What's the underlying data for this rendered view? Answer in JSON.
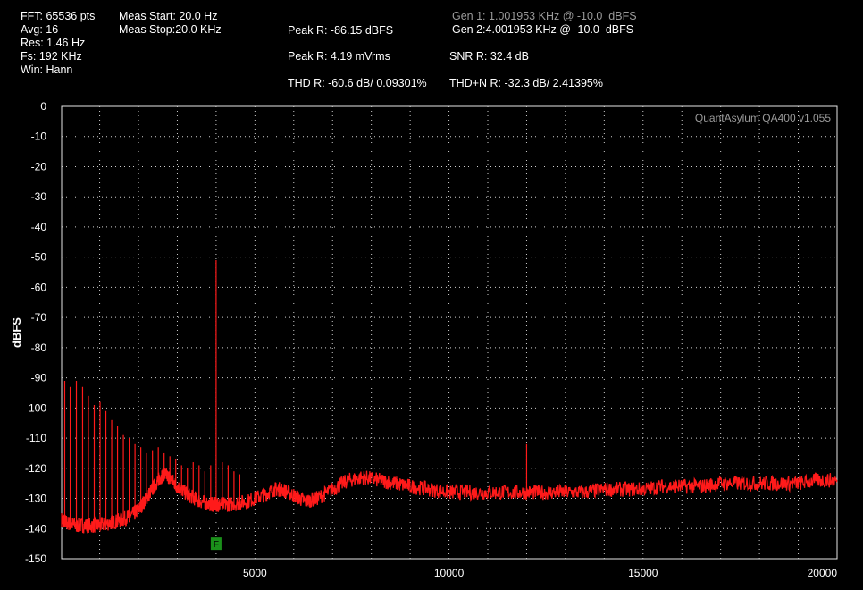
{
  "info": {
    "fft": "FFT: 65536 pts",
    "avg": "Avg: 16",
    "res": "Res: 1.46 Hz",
    "fs": "Fs: 192 KHz",
    "win": "Win: Hann",
    "meas_start": "Meas Start: 20.0 Hz",
    "meas_stop": "Meas Stop:20.0 KHz",
    "peak_dbfs": "Peak R: -86.15 dBFS",
    "peak_mv": "Peak R: 4.19 mVrms",
    "thd": "THD R: -60.6 dB/ 0.09301%",
    "gen1": "Gen 1: 1.001953 KHz @ -10.0  dBFS",
    "gen2": "Gen 2:4.001953 KHz @ -10.0  dBFS",
    "snr": "SNR R: 32.4 dB",
    "thdn": "THD+N R: -32.3 dB/ 2.41395%"
  },
  "brand": "QuantAsylum QA400 v1.055",
  "marker_label": "F",
  "colors": {
    "trace": "#ff1a1a",
    "grid": "#cfcfcf",
    "marker": "#1a8f1a"
  },
  "chart_data": {
    "type": "line",
    "xlabel": "",
    "ylabel": "dBFS",
    "xlim": [
      20,
      20000
    ],
    "ylim": [
      -150,
      0
    ],
    "x_ticks": [
      5000,
      10000,
      15000,
      20000
    ],
    "y_ticks": [
      0,
      -10,
      -20,
      -30,
      -40,
      -50,
      -60,
      -70,
      -80,
      -90,
      -100,
      -110,
      -120,
      -130,
      -140,
      -150
    ],
    "grid": true,
    "marker": {
      "x": 4000,
      "y": -145
    },
    "series": [
      {
        "x": [
          20,
          150,
          400,
          700,
          1000,
          1300,
          1600,
          1900,
          2100,
          2300,
          2500,
          2650,
          2800,
          3000,
          3300,
          3600,
          3900,
          4000,
          4100,
          4400,
          4800,
          5200,
          5500,
          5700,
          6000,
          6300,
          6600,
          7000,
          7400,
          7800,
          8200,
          8600,
          9000,
          9500,
          10000,
          10500,
          11000,
          11500,
          12000,
          12500,
          13000,
          13500,
          14000,
          14500,
          15000,
          15500,
          16000,
          16500,
          17000,
          17500,
          18000,
          18500,
          19000,
          19500,
          20000
        ],
        "y": [
          -137,
          -138,
          -139,
          -139,
          -139,
          -138,
          -137,
          -135,
          -132,
          -128,
          -124,
          -122,
          -123,
          -126,
          -129,
          -131,
          -132,
          -132,
          -132,
          -132,
          -131,
          -129,
          -127,
          -127,
          -129,
          -131,
          -130,
          -127,
          -124,
          -123,
          -124,
          -125,
          -126,
          -127,
          -128,
          -128,
          -128,
          -128,
          -128,
          -128,
          -128,
          -128,
          -127,
          -127,
          -127,
          -126,
          -126,
          -126,
          -125,
          -125,
          -125,
          -125,
          -125,
          -124,
          -124
        ]
      }
    ],
    "spikes": [
      {
        "x": 100,
        "y": -91
      },
      {
        "x": 240,
        "y": -93
      },
      {
        "x": 400,
        "y": -91
      },
      {
        "x": 560,
        "y": -93
      },
      {
        "x": 710,
        "y": -96
      },
      {
        "x": 860,
        "y": -99
      },
      {
        "x": 1010,
        "y": -98
      },
      {
        "x": 1160,
        "y": -101
      },
      {
        "x": 1310,
        "y": -104
      },
      {
        "x": 1460,
        "y": -106
      },
      {
        "x": 1610,
        "y": -109
      },
      {
        "x": 1760,
        "y": -110
      },
      {
        "x": 1910,
        "y": -112
      },
      {
        "x": 2060,
        "y": -113
      },
      {
        "x": 2210,
        "y": -115
      },
      {
        "x": 2360,
        "y": -114
      },
      {
        "x": 2510,
        "y": -113
      },
      {
        "x": 2660,
        "y": -115
      },
      {
        "x": 2810,
        "y": -116
      },
      {
        "x": 2960,
        "y": -117
      },
      {
        "x": 3110,
        "y": -119
      },
      {
        "x": 3260,
        "y": -120
      },
      {
        "x": 3410,
        "y": -118
      },
      {
        "x": 3560,
        "y": -119
      },
      {
        "x": 3710,
        "y": -121
      },
      {
        "x": 3860,
        "y": -119
      },
      {
        "x": 4000,
        "y": -51
      },
      {
        "x": 4160,
        "y": -118
      },
      {
        "x": 4310,
        "y": -119
      },
      {
        "x": 4460,
        "y": -121
      },
      {
        "x": 4610,
        "y": -122
      },
      {
        "x": 12000,
        "y": -112
      }
    ]
  }
}
